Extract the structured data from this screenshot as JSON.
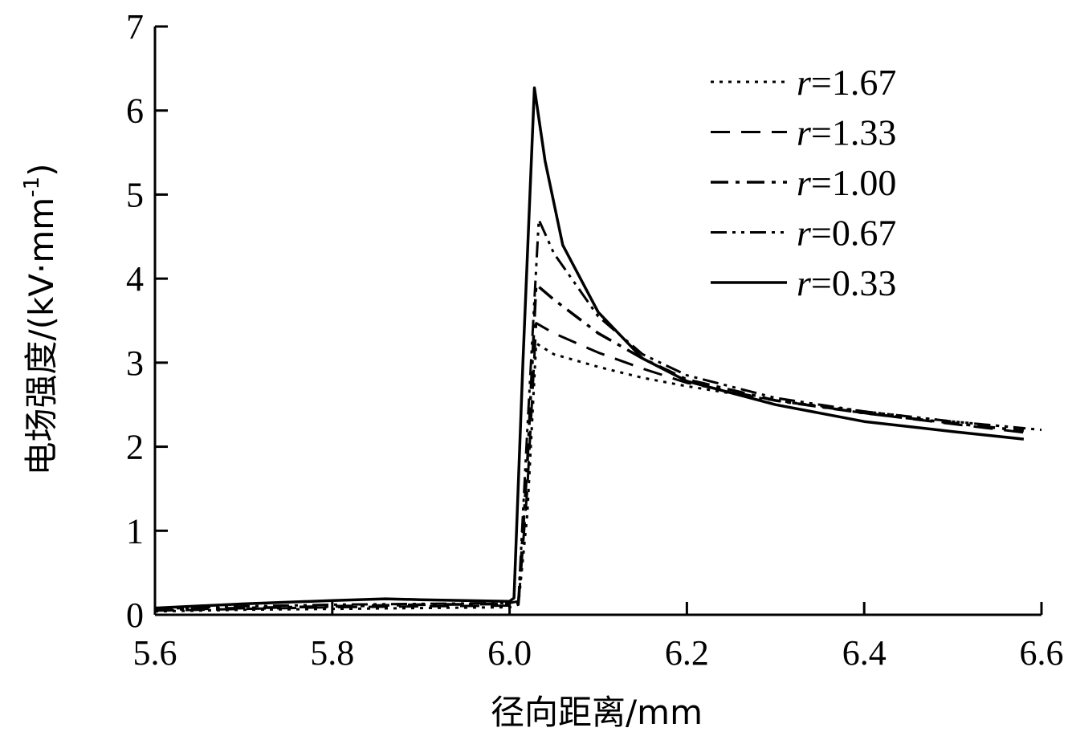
{
  "chart_data": {
    "type": "line",
    "xlabel": "径向距离/mm",
    "ylabel": "电场强度/(kV·mm",
    "ylabel_sup": "-1",
    "ylabel_close": ")",
    "xlim": [
      5.6,
      6.6
    ],
    "ylim": [
      0,
      7
    ],
    "x_ticks": [
      "5.6",
      "5.8",
      "6.0",
      "6.2",
      "6.4",
      "6.6"
    ],
    "y_ticks": [
      "0",
      "1",
      "2",
      "3",
      "4",
      "5",
      "6",
      "7"
    ],
    "grid": false,
    "legend_position": "top-right",
    "series": [
      {
        "name": "r=1.67",
        "var": "r",
        "value": "=1.67",
        "style": "dotted",
        "points": [
          [
            5.6,
            0.04
          ],
          [
            5.7,
            0.06
          ],
          [
            5.8,
            0.07
          ],
          [
            5.9,
            0.08
          ],
          [
            6.0,
            0.09
          ],
          [
            6.01,
            0.12
          ],
          [
            6.02,
            1.2
          ],
          [
            6.03,
            3.23
          ],
          [
            6.05,
            3.1
          ],
          [
            6.1,
            2.95
          ],
          [
            6.15,
            2.82
          ],
          [
            6.2,
            2.72
          ],
          [
            6.3,
            2.55
          ],
          [
            6.4,
            2.42
          ],
          [
            6.5,
            2.3
          ],
          [
            6.6,
            2.2
          ]
        ]
      },
      {
        "name": "r=1.33",
        "var": "r",
        "value": "=1.33",
        "style": "dashed",
        "points": [
          [
            5.6,
            0.05
          ],
          [
            5.7,
            0.07
          ],
          [
            5.8,
            0.09
          ],
          [
            5.9,
            0.1
          ],
          [
            6.0,
            0.11
          ],
          [
            6.01,
            0.12
          ],
          [
            6.02,
            1.5
          ],
          [
            6.03,
            3.47
          ],
          [
            6.05,
            3.35
          ],
          [
            6.1,
            3.12
          ],
          [
            6.15,
            2.93
          ],
          [
            6.2,
            2.76
          ],
          [
            6.3,
            2.55
          ],
          [
            6.4,
            2.4
          ],
          [
            6.5,
            2.27
          ],
          [
            6.58,
            2.17
          ]
        ]
      },
      {
        "name": "r=1.00",
        "var": "r",
        "value": "=1.00",
        "style": "dashdot",
        "points": [
          [
            5.6,
            0.06
          ],
          [
            5.7,
            0.08
          ],
          [
            5.8,
            0.1
          ],
          [
            5.9,
            0.12
          ],
          [
            6.0,
            0.13
          ],
          [
            6.01,
            0.14
          ],
          [
            6.02,
            1.8
          ],
          [
            6.03,
            3.93
          ],
          [
            6.05,
            3.75
          ],
          [
            6.1,
            3.35
          ],
          [
            6.15,
            3.05
          ],
          [
            6.2,
            2.8
          ],
          [
            6.3,
            2.55
          ],
          [
            6.4,
            2.4
          ],
          [
            6.5,
            2.28
          ],
          [
            6.58,
            2.19
          ]
        ]
      },
      {
        "name": "r=0.67",
        "var": "r",
        "value": "=0.67",
        "style": "dashdotdot",
        "points": [
          [
            5.6,
            0.07
          ],
          [
            5.7,
            0.1
          ],
          [
            5.8,
            0.12
          ],
          [
            5.9,
            0.13
          ],
          [
            6.0,
            0.14
          ],
          [
            6.01,
            0.16
          ],
          [
            6.02,
            2.2
          ],
          [
            6.033,
            4.7
          ],
          [
            6.05,
            4.3
          ],
          [
            6.1,
            3.55
          ],
          [
            6.15,
            3.1
          ],
          [
            6.2,
            2.85
          ],
          [
            6.3,
            2.58
          ],
          [
            6.4,
            2.42
          ],
          [
            6.5,
            2.3
          ],
          [
            6.58,
            2.22
          ]
        ]
      },
      {
        "name": "r=0.33",
        "var": "r",
        "value": "=0.33",
        "style": "solid",
        "points": [
          [
            5.6,
            0.08
          ],
          [
            5.7,
            0.13
          ],
          [
            5.8,
            0.17
          ],
          [
            5.86,
            0.19
          ],
          [
            5.9,
            0.18
          ],
          [
            6.0,
            0.16
          ],
          [
            6.005,
            0.2
          ],
          [
            6.015,
            3.0
          ],
          [
            6.028,
            6.27
          ],
          [
            6.04,
            5.4
          ],
          [
            6.06,
            4.4
          ],
          [
            6.1,
            3.6
          ],
          [
            6.15,
            3.05
          ],
          [
            6.2,
            2.78
          ],
          [
            6.3,
            2.5
          ],
          [
            6.4,
            2.3
          ],
          [
            6.5,
            2.18
          ],
          [
            6.58,
            2.09
          ]
        ]
      }
    ]
  }
}
